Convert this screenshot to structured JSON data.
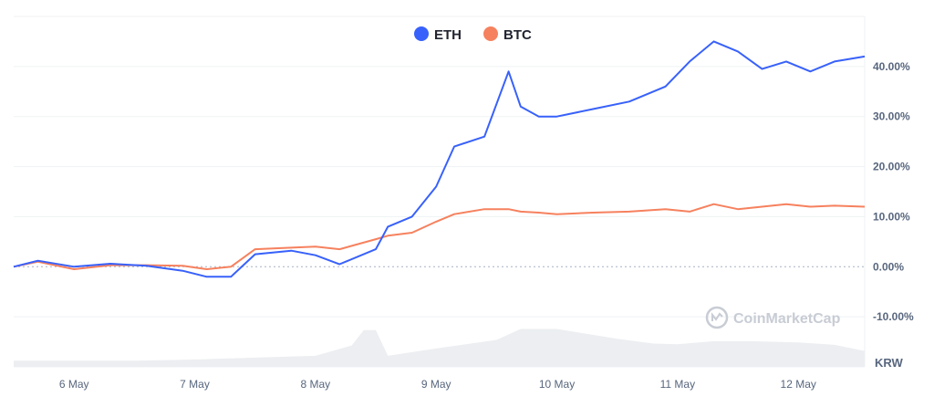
{
  "chart_data": {
    "type": "line",
    "ylim": [
      -20,
      50
    ],
    "y_ticks": [
      "-10.00%",
      "0.00%",
      "10.00%",
      "20.00%",
      "30.00%",
      "40.00%"
    ],
    "x_ticks": [
      "6 May",
      "7 May",
      "8 May",
      "9 May",
      "10 May",
      "11 May",
      "12 May"
    ],
    "currency": "KRW",
    "watermark": "CoinMarketCap",
    "grid": true,
    "legend_position": "top-center",
    "x": [
      5.5,
      5.7,
      6.0,
      6.3,
      6.6,
      6.9,
      7.1,
      7.3,
      7.5,
      7.8,
      8.0,
      8.2,
      8.5,
      8.6,
      8.8,
      9.0,
      9.15,
      9.4,
      9.6,
      9.7,
      9.85,
      10.0,
      10.3,
      10.6,
      10.9,
      11.1,
      11.3,
      11.5,
      11.7,
      11.9,
      12.1,
      12.3,
      12.55
    ],
    "series": [
      {
        "name": "ETH",
        "color": "#3861fb",
        "values": [
          0,
          1.2,
          0,
          0.6,
          0.2,
          -0.8,
          -2.0,
          -2.0,
          2.5,
          3.2,
          2.3,
          0.5,
          3.5,
          8.0,
          10.0,
          16.0,
          24.0,
          26.0,
          39.0,
          32.0,
          30.0,
          30.0,
          31.5,
          33.0,
          36.0,
          41.0,
          45.0,
          43.0,
          39.5,
          41.0,
          39.0,
          41.0,
          42.0
        ]
      },
      {
        "name": "BTC",
        "color": "#f6815e",
        "values": [
          0,
          1.0,
          -0.5,
          0.3,
          0.3,
          0.2,
          -0.5,
          0,
          3.5,
          3.8,
          4.0,
          3.5,
          5.5,
          6.2,
          6.8,
          9.0,
          10.5,
          11.5,
          11.5,
          11.0,
          10.8,
          10.5,
          10.8,
          11.0,
          11.5,
          11.0,
          12.5,
          11.5,
          12.0,
          12.5,
          12.0,
          12.2,
          12.0
        ]
      }
    ],
    "volume": {
      "color": "#eceef1",
      "x": [
        5.5,
        6.0,
        6.5,
        7.0,
        7.5,
        8.0,
        8.3,
        8.4,
        8.5,
        8.6,
        9.0,
        9.5,
        9.7,
        10.0,
        10.5,
        10.8,
        11.0,
        11.3,
        11.6,
        12.0,
        12.3,
        12.55
      ],
      "values": [
        10,
        10,
        10,
        12,
        15,
        18,
        35,
        60,
        60,
        18,
        30,
        44,
        62,
        62,
        46,
        38,
        37,
        42,
        42,
        40,
        36,
        26
      ]
    }
  }
}
